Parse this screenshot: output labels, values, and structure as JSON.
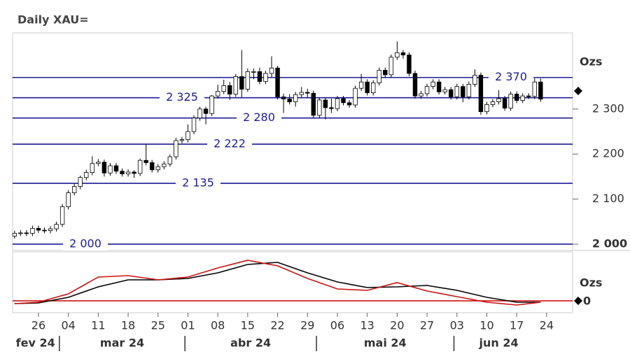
{
  "chart_data": {
    "type": "candlestick",
    "title": "Daily XAU=",
    "categories": [
      "2024-02-20",
      "2024-02-21",
      "2024-02-22",
      "2024-02-23",
      "2024-02-26",
      "2024-02-27",
      "2024-02-28",
      "2024-02-29",
      "2024-03-01",
      "2024-03-04",
      "2024-03-05",
      "2024-03-06",
      "2024-03-07",
      "2024-03-08",
      "2024-03-11",
      "2024-03-12",
      "2024-03-13",
      "2024-03-14",
      "2024-03-15",
      "2024-03-18",
      "2024-03-19",
      "2024-03-20",
      "2024-03-21",
      "2024-03-22",
      "2024-03-25",
      "2024-03-26",
      "2024-03-27",
      "2024-03-28",
      "2024-03-29",
      "2024-04-01",
      "2024-04-02",
      "2024-04-03",
      "2024-04-04",
      "2024-04-05",
      "2024-04-08",
      "2024-04-09",
      "2024-04-10",
      "2024-04-11",
      "2024-04-12",
      "2024-04-15",
      "2024-04-16",
      "2024-04-17",
      "2024-04-18",
      "2024-04-19",
      "2024-04-22",
      "2024-04-23",
      "2024-04-24",
      "2024-04-25",
      "2024-04-26",
      "2024-04-29",
      "2024-04-30",
      "2024-05-01",
      "2024-05-02",
      "2024-05-03",
      "2024-05-06",
      "2024-05-07",
      "2024-05-08",
      "2024-05-09",
      "2024-05-10",
      "2024-05-13",
      "2024-05-14",
      "2024-05-15",
      "2024-05-16",
      "2024-05-17",
      "2024-05-20",
      "2024-05-21",
      "2024-05-22",
      "2024-05-23",
      "2024-05-24",
      "2024-05-27",
      "2024-05-28",
      "2024-05-29",
      "2024-05-30",
      "2024-05-31",
      "2024-06-03",
      "2024-06-04",
      "2024-06-05",
      "2024-06-06",
      "2024-06-07",
      "2024-06-10",
      "2024-06-11",
      "2024-06-12",
      "2024-06-13",
      "2024-06-14",
      "2024-06-17",
      "2024-06-18",
      "2024-06-19",
      "2024-06-20",
      "2024-06-21"
    ],
    "open": [
      2018,
      2024,
      2025,
      2024,
      2035,
      2031,
      2030,
      2034,
      2044,
      2083,
      2114,
      2128,
      2148,
      2159,
      2179,
      2182,
      2158,
      2174,
      2162,
      2156,
      2160,
      2157,
      2186,
      2181,
      2165,
      2172,
      2178,
      2194,
      2230,
      2232,
      2250,
      2280,
      2300,
      2290,
      2329,
      2339,
      2352,
      2333,
      2372,
      2344,
      2383,
      2383,
      2361,
      2379,
      2391,
      2327,
      2322,
      2316,
      2332,
      2337,
      2335,
      2286,
      2320,
      2303,
      2301,
      2323,
      2314,
      2309,
      2346,
      2360,
      2336,
      2358,
      2386,
      2376,
      2415,
      2425,
      2420,
      2379,
      2329,
      2334,
      2350,
      2360,
      2338,
      2343,
      2327,
      2350,
      2327,
      2355,
      2375,
      2294,
      2310,
      2316,
      2323,
      2302,
      2333,
      2319,
      2329,
      2328,
      2360
    ],
    "high": [
      2030,
      2031,
      2031,
      2041,
      2041,
      2037,
      2040,
      2050,
      2089,
      2120,
      2134,
      2152,
      2165,
      2195,
      2189,
      2188,
      2180,
      2180,
      2168,
      2166,
      2164,
      2190,
      2222,
      2187,
      2178,
      2184,
      2199,
      2236,
      2238,
      2266,
      2286,
      2305,
      2305,
      2331,
      2354,
      2365,
      2360,
      2378,
      2431,
      2390,
      2390,
      2392,
      2385,
      2417,
      2396,
      2334,
      2333,
      2338,
      2349,
      2345,
      2341,
      2326,
      2326,
      2323,
      2329,
      2329,
      2320,
      2352,
      2378,
      2366,
      2364,
      2392,
      2392,
      2421,
      2450,
      2431,
      2426,
      2385,
      2340,
      2356,
      2366,
      2366,
      2349,
      2349,
      2356,
      2356,
      2361,
      2388,
      2381,
      2316,
      2322,
      2342,
      2329,
      2339,
      2339,
      2335,
      2335,
      2368,
      2368
    ],
    "low": [
      2012,
      2018,
      2018,
      2018,
      2025,
      2024,
      2024,
      2028,
      2038,
      2077,
      2108,
      2122,
      2142,
      2153,
      2173,
      2150,
      2152,
      2156,
      2150,
      2150,
      2147,
      2151,
      2175,
      2159,
      2159,
      2166,
      2172,
      2188,
      2224,
      2226,
      2244,
      2274,
      2266,
      2284,
      2323,
      2333,
      2320,
      2327,
      2326,
      2338,
      2366,
      2355,
      2355,
      2370,
      2321,
      2291,
      2310,
      2305,
      2326,
      2325,
      2280,
      2280,
      2277,
      2291,
      2295,
      2308,
      2303,
      2303,
      2340,
      2330,
      2330,
      2352,
      2370,
      2370,
      2409,
      2412,
      2373,
      2323,
      2323,
      2328,
      2344,
      2332,
      2332,
      2321,
      2321,
      2315,
      2321,
      2349,
      2287,
      2288,
      2304,
      2310,
      2296,
      2296,
      2313,
      2313,
      2322,
      2322,
      2316
    ],
    "close": [
      2024,
      2025,
      2024,
      2035,
      2031,
      2030,
      2034,
      2044,
      2083,
      2114,
      2128,
      2148,
      2159,
      2179,
      2182,
      2158,
      2174,
      2162,
      2156,
      2160,
      2157,
      2186,
      2181,
      2165,
      2172,
      2178,
      2194,
      2230,
      2232,
      2250,
      2280,
      2300,
      2290,
      2329,
      2339,
      2352,
      2333,
      2372,
      2344,
      2383,
      2383,
      2361,
      2379,
      2391,
      2327,
      2322,
      2316,
      2332,
      2337,
      2335,
      2286,
      2320,
      2303,
      2301,
      2323,
      2314,
      2309,
      2346,
      2360,
      2336,
      2358,
      2386,
      2376,
      2415,
      2425,
      2420,
      2379,
      2329,
      2334,
      2350,
      2360,
      2338,
      2343,
      2327,
      2350,
      2327,
      2355,
      2375,
      2294,
      2310,
      2316,
      2323,
      2302,
      2333,
      2319,
      2329,
      2328,
      2360,
      2322
    ],
    "up_color": "#ffffff",
    "down_color": "#000000",
    "ylim": [
      1986,
      2469
    ],
    "yticks": [
      {
        "value": 2000,
        "label": "2 000"
      },
      {
        "value": 2100,
        "label": "2 100"
      },
      {
        "value": 2200,
        "label": "2 200"
      },
      {
        "value": 2300,
        "label": "2 300"
      }
    ],
    "unit_label": "Ozs",
    "last_marker": 2340,
    "level_color": "#1c1c96",
    "levels": [
      {
        "value": 2370,
        "label": "2 370"
      },
      {
        "value": 2325,
        "label": "2 325"
      },
      {
        "value": 2280,
        "label": "2 280"
      },
      {
        "value": 2222,
        "label": "2 222"
      },
      {
        "value": 2135,
        "label": "2 135"
      },
      {
        "value": 2000,
        "label": "2 000"
      }
    ],
    "xticks": [
      {
        "value": "2024-02-26",
        "label": "26"
      },
      {
        "value": "2024-03-04",
        "label": "04"
      },
      {
        "value": "2024-03-11",
        "label": "11"
      },
      {
        "value": "2024-03-18",
        "label": "18"
      },
      {
        "value": "2024-03-25",
        "label": "25"
      },
      {
        "value": "2024-04-01",
        "label": "01"
      },
      {
        "value": "2024-04-08",
        "label": "08"
      },
      {
        "value": "2024-04-15",
        "label": "15"
      },
      {
        "value": "2024-04-22",
        "label": "22"
      },
      {
        "value": "2024-04-29",
        "label": "29"
      },
      {
        "value": "2024-05-06",
        "label": "06"
      },
      {
        "value": "2024-05-13",
        "label": "13"
      },
      {
        "value": "2024-05-20",
        "label": "20"
      },
      {
        "value": "2024-05-27",
        "label": "27"
      },
      {
        "value": "2024-06-03",
        "label": "03"
      },
      {
        "value": "2024-06-10",
        "label": "10"
      },
      {
        "value": "2024-06-17",
        "label": "17"
      },
      {
        "value": "2024-06-24",
        "label": "24"
      }
    ],
    "months": [
      {
        "value": "2024-02",
        "label": "fev 24"
      },
      {
        "value": "2024-03",
        "label": "mar 24"
      },
      {
        "value": "2024-04",
        "label": "abr 24"
      },
      {
        "value": "2024-05",
        "label": "mai 24"
      },
      {
        "value": "2024-06",
        "label": "jun 24"
      }
    ],
    "oscillator": {
      "type": "line",
      "unit_label": "Ozs",
      "ylim": [
        -17,
        70
      ],
      "zero_tick": {
        "value": 0,
        "label": "0"
      },
      "zero_line_color": "#cc0000",
      "x": [
        "2024-02-20",
        "2024-02-26",
        "2024-03-04",
        "2024-03-11",
        "2024-03-18",
        "2024-03-25",
        "2024-04-01",
        "2024-04-08",
        "2024-04-15",
        "2024-04-22",
        "2024-04-29",
        "2024-05-06",
        "2024-05-13",
        "2024-05-20",
        "2024-05-27",
        "2024-06-03",
        "2024-06-10",
        "2024-06-17",
        "2024-06-21"
      ],
      "series": [
        {
          "color": "#000000",
          "values": [
            -4,
            -3,
            5,
            20,
            30,
            30,
            32,
            40,
            52,
            55,
            40,
            27,
            19,
            20,
            22,
            15,
            5,
            -2,
            -2
          ]
        },
        {
          "color": "#d01010",
          "values": [
            -4,
            -2,
            10,
            34,
            36,
            30,
            34,
            47,
            58,
            50,
            32,
            17,
            15,
            26,
            14,
            6,
            -2,
            -6,
            -2
          ]
        }
      ]
    }
  }
}
